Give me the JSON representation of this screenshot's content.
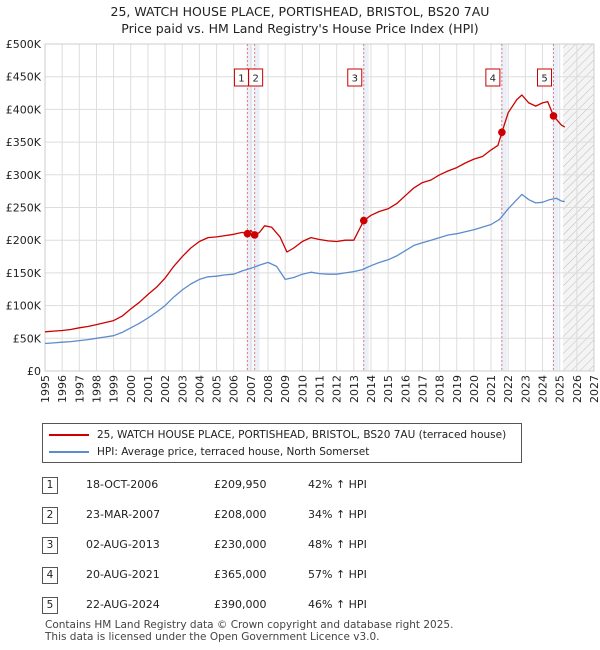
{
  "title_line1": "25, WATCH HOUSE PLACE, PORTISHEAD, BRISTOL, BS20 7AU",
  "title_line2": "Price paid vs. HM Land Registry's House Price Index (HPI)",
  "colors": {
    "red": "#cc0000",
    "blue": "#5b8ccc",
    "grid": "#dddddd",
    "vline": "#e08080",
    "shade": "#dde6f4"
  },
  "chart_data": {
    "type": "line",
    "title": "Price paid vs. HM Land Registry's House Price Index (HPI)",
    "xlim": [
      1995,
      2027
    ],
    "ylim": [
      0,
      500000
    ],
    "x_ticks": [
      "1995",
      "1996",
      "1997",
      "1998",
      "1999",
      "2000",
      "2001",
      "2002",
      "2003",
      "2004",
      "2005",
      "2006",
      "2007",
      "2008",
      "2009",
      "2010",
      "2011",
      "2012",
      "2013",
      "2014",
      "2015",
      "2016",
      "2017",
      "2018",
      "2019",
      "2020",
      "2021",
      "2022",
      "2023",
      "2024",
      "2025",
      "2026",
      "2027"
    ],
    "y_ticks": [
      {
        "value": 0,
        "label": "£0"
      },
      {
        "value": 50000,
        "label": "£50K"
      },
      {
        "value": 100000,
        "label": "£100K"
      },
      {
        "value": 150000,
        "label": "£150K"
      },
      {
        "value": 200000,
        "label": "£200K"
      },
      {
        "value": 250000,
        "label": "£250K"
      },
      {
        "value": 300000,
        "label": "£300K"
      },
      {
        "value": 350000,
        "label": "£350K"
      },
      {
        "value": 400000,
        "label": "£400K"
      },
      {
        "value": 450000,
        "label": "£450K"
      },
      {
        "value": 500000,
        "label": "£500K"
      }
    ],
    "forecast_from": 2025.2,
    "series": [
      {
        "name": "25, WATCH HOUSE PLACE, PORTISHEAD, BRISTOL, BS20 7AU (terraced house)",
        "color": "#cc0000",
        "points": [
          [
            1995.0,
            60000
          ],
          [
            1995.5,
            61000
          ],
          [
            1996.0,
            62000
          ],
          [
            1996.5,
            63500
          ],
          [
            1997.0,
            66000
          ],
          [
            1997.5,
            68000
          ],
          [
            1998.0,
            71000
          ],
          [
            1998.5,
            74000
          ],
          [
            1999.0,
            77000
          ],
          [
            1999.5,
            84000
          ],
          [
            2000.0,
            95000
          ],
          [
            2000.5,
            105000
          ],
          [
            2001.0,
            117000
          ],
          [
            2001.5,
            128000
          ],
          [
            2002.0,
            142000
          ],
          [
            2002.5,
            160000
          ],
          [
            2003.0,
            175000
          ],
          [
            2003.5,
            188000
          ],
          [
            2004.0,
            198000
          ],
          [
            2004.5,
            204000
          ],
          [
            2005.0,
            205000
          ],
          [
            2005.5,
            207000
          ],
          [
            2006.0,
            209000
          ],
          [
            2006.5,
            212000
          ],
          [
            2006.8,
            209950
          ],
          [
            2007.0,
            215000
          ],
          [
            2007.22,
            208000
          ],
          [
            2007.5,
            212000
          ],
          [
            2007.8,
            222000
          ],
          [
            2008.2,
            220000
          ],
          [
            2008.7,
            205000
          ],
          [
            2009.1,
            182000
          ],
          [
            2009.5,
            188000
          ],
          [
            2010.0,
            198000
          ],
          [
            2010.5,
            204000
          ],
          [
            2011.0,
            201000
          ],
          [
            2011.5,
            199000
          ],
          [
            2012.0,
            198000
          ],
          [
            2012.5,
            200000
          ],
          [
            2013.0,
            200000
          ],
          [
            2013.58,
            230000
          ],
          [
            2014.0,
            238000
          ],
          [
            2014.5,
            244000
          ],
          [
            2015.0,
            248000
          ],
          [
            2015.5,
            256000
          ],
          [
            2016.0,
            268000
          ],
          [
            2016.5,
            280000
          ],
          [
            2017.0,
            288000
          ],
          [
            2017.5,
            292000
          ],
          [
            2018.0,
            300000
          ],
          [
            2018.5,
            306000
          ],
          [
            2019.0,
            311000
          ],
          [
            2019.5,
            318000
          ],
          [
            2020.0,
            324000
          ],
          [
            2020.5,
            328000
          ],
          [
            2021.0,
            338000
          ],
          [
            2021.4,
            345000
          ],
          [
            2021.63,
            365000
          ],
          [
            2022.0,
            395000
          ],
          [
            2022.5,
            415000
          ],
          [
            2022.8,
            422000
          ],
          [
            2023.2,
            410000
          ],
          [
            2023.6,
            405000
          ],
          [
            2024.0,
            410000
          ],
          [
            2024.3,
            412000
          ],
          [
            2024.64,
            390000
          ],
          [
            2024.9,
            382000
          ],
          [
            2025.1,
            376000
          ],
          [
            2025.3,
            373000
          ]
        ]
      },
      {
        "name": "HPI: Average price, terraced house, North Somerset",
        "color": "#5b8ccc",
        "points": [
          [
            1995.0,
            42000
          ],
          [
            1995.5,
            43000
          ],
          [
            1996.0,
            44000
          ],
          [
            1996.5,
            45000
          ],
          [
            1997.0,
            46500
          ],
          [
            1997.5,
            48000
          ],
          [
            1998.0,
            50000
          ],
          [
            1998.5,
            52000
          ],
          [
            1999.0,
            54000
          ],
          [
            1999.5,
            59000
          ],
          [
            2000.0,
            66000
          ],
          [
            2000.5,
            73000
          ],
          [
            2001.0,
            81000
          ],
          [
            2001.5,
            90000
          ],
          [
            2002.0,
            100000
          ],
          [
            2002.5,
            113000
          ],
          [
            2003.0,
            124000
          ],
          [
            2003.5,
            133000
          ],
          [
            2004.0,
            140000
          ],
          [
            2004.5,
            144000
          ],
          [
            2005.0,
            145000
          ],
          [
            2005.5,
            147000
          ],
          [
            2006.0,
            148000
          ],
          [
            2006.5,
            153000
          ],
          [
            2007.0,
            157000
          ],
          [
            2007.5,
            162000
          ],
          [
            2008.0,
            166000
          ],
          [
            2008.5,
            160000
          ],
          [
            2009.0,
            140000
          ],
          [
            2009.5,
            143000
          ],
          [
            2010.0,
            148000
          ],
          [
            2010.5,
            151000
          ],
          [
            2011.0,
            149000
          ],
          [
            2011.5,
            148000
          ],
          [
            2012.0,
            148000
          ],
          [
            2012.5,
            150000
          ],
          [
            2013.0,
            152000
          ],
          [
            2013.5,
            155000
          ],
          [
            2014.0,
            161000
          ],
          [
            2014.5,
            166000
          ],
          [
            2015.0,
            170000
          ],
          [
            2015.5,
            176000
          ],
          [
            2016.0,
            184000
          ],
          [
            2016.5,
            192000
          ],
          [
            2017.0,
            196000
          ],
          [
            2017.5,
            200000
          ],
          [
            2018.0,
            204000
          ],
          [
            2018.5,
            208000
          ],
          [
            2019.0,
            210000
          ],
          [
            2019.5,
            213000
          ],
          [
            2020.0,
            216000
          ],
          [
            2020.5,
            220000
          ],
          [
            2021.0,
            224000
          ],
          [
            2021.5,
            232000
          ],
          [
            2022.0,
            248000
          ],
          [
            2022.5,
            262000
          ],
          [
            2022.8,
            270000
          ],
          [
            2023.2,
            262000
          ],
          [
            2023.6,
            257000
          ],
          [
            2024.0,
            258000
          ],
          [
            2024.4,
            262000
          ],
          [
            2024.8,
            264000
          ],
          [
            2025.1,
            260000
          ],
          [
            2025.3,
            259000
          ]
        ]
      }
    ],
    "sales": [
      {
        "label": "1",
        "x": 2006.8,
        "value": 209950
      },
      {
        "label": "2",
        "x": 2007.22,
        "value": 208000
      },
      {
        "label": "3",
        "x": 2013.58,
        "value": 230000
      },
      {
        "label": "4",
        "x": 2021.63,
        "value": 365000
      },
      {
        "label": "5",
        "x": 2024.64,
        "value": 390000
      }
    ]
  },
  "legend": {
    "red_label": "25, WATCH HOUSE PLACE, PORTISHEAD, BRISTOL, BS20 7AU (terraced house)",
    "blue_label": "HPI: Average price, terraced house, North Somerset"
  },
  "table": [
    {
      "num": "1",
      "date": "18-OCT-2006",
      "price": "£209,950",
      "hpi": "42% ↑ HPI"
    },
    {
      "num": "2",
      "date": "23-MAR-2007",
      "price": "£208,000",
      "hpi": "34% ↑ HPI"
    },
    {
      "num": "3",
      "date": "02-AUG-2013",
      "price": "£230,000",
      "hpi": "48% ↑ HPI"
    },
    {
      "num": "4",
      "date": "20-AUG-2021",
      "price": "£365,000",
      "hpi": "57% ↑ HPI"
    },
    {
      "num": "5",
      "date": "22-AUG-2024",
      "price": "£390,000",
      "hpi": "46% ↑ HPI"
    }
  ],
  "footer_line1": "Contains HM Land Registry data © Crown copyright and database right 2025.",
  "footer_line2": "This data is licensed under the Open Government Licence v3.0."
}
